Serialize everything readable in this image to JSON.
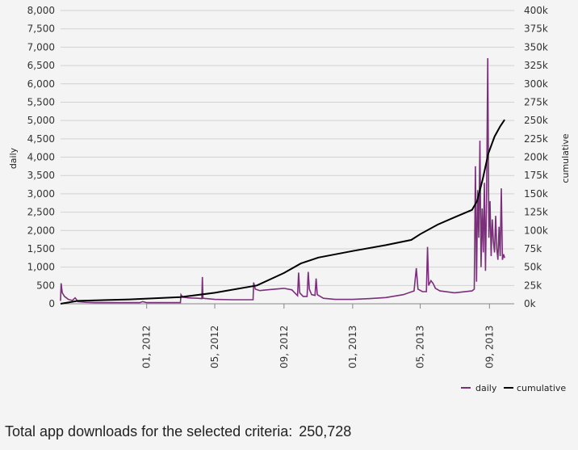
{
  "chart_data": {
    "type": "line",
    "x_axis": {
      "type": "date",
      "range": [
        "2011-08-01",
        "2013-10-15"
      ],
      "tick_labels": [
        "01, 2012",
        "05, 2012",
        "09, 2012",
        "01, 2013",
        "05, 2013",
        "09, 2013"
      ],
      "tick_dates": [
        "2012-01-01",
        "2012-05-01",
        "2012-09-01",
        "2013-01-01",
        "2013-05-01",
        "2013-09-01"
      ]
    },
    "y_left": {
      "label": "daily",
      "range": [
        0,
        8000
      ],
      "tick_labels": [
        "0",
        "500",
        "1,000",
        "1,500",
        "2,000",
        "2,500",
        "3,000",
        "3,500",
        "4,000",
        "4,500",
        "5,000",
        "5,500",
        "6,000",
        "6,500",
        "7,000",
        "7,500",
        "8,000"
      ]
    },
    "y_right": {
      "label": "cumulative",
      "range": [
        0,
        400000
      ],
      "tick_labels": [
        "0k",
        "25k",
        "50k",
        "75k",
        "100k",
        "125k",
        "150k",
        "175k",
        "200k",
        "225k",
        "250k",
        "275k",
        "300k",
        "325k",
        "350k",
        "375k",
        "400k"
      ]
    },
    "grid": "horizontal",
    "legend_position": "bottom-right",
    "series": [
      {
        "name": "daily",
        "axis": "left",
        "color": "#7b2f7b",
        "points": [
          [
            "2011-08-01",
            80
          ],
          [
            "2011-08-02",
            560
          ],
          [
            "2011-08-04",
            300
          ],
          [
            "2011-08-08",
            200
          ],
          [
            "2011-08-15",
            120
          ],
          [
            "2011-08-22",
            90
          ],
          [
            "2011-08-27",
            160
          ],
          [
            "2011-09-01",
            60
          ],
          [
            "2011-09-15",
            40
          ],
          [
            "2011-10-01",
            30
          ],
          [
            "2011-11-01",
            30
          ],
          [
            "2011-12-01",
            30
          ],
          [
            "2011-12-20",
            30
          ],
          [
            "2011-12-25",
            60
          ],
          [
            "2012-01-01",
            30
          ],
          [
            "2012-02-01",
            30
          ],
          [
            "2012-03-01",
            30
          ],
          [
            "2012-03-02",
            250
          ],
          [
            "2012-03-05",
            180
          ],
          [
            "2012-03-15",
            160
          ],
          [
            "2012-04-01",
            150
          ],
          [
            "2012-04-08",
            140
          ],
          [
            "2012-04-09",
            730
          ],
          [
            "2012-04-10",
            150
          ],
          [
            "2012-05-01",
            120
          ],
          [
            "2012-06-01",
            110
          ],
          [
            "2012-07-01",
            110
          ],
          [
            "2012-07-08",
            110
          ],
          [
            "2012-07-09",
            580
          ],
          [
            "2012-07-12",
            400
          ],
          [
            "2012-07-20",
            360
          ],
          [
            "2012-08-01",
            380
          ],
          [
            "2012-08-15",
            400
          ],
          [
            "2012-09-01",
            420
          ],
          [
            "2012-09-15",
            380
          ],
          [
            "2012-09-20",
            300
          ],
          [
            "2012-09-25",
            220
          ],
          [
            "2012-09-27",
            850
          ],
          [
            "2012-09-29",
            300
          ],
          [
            "2012-10-05",
            200
          ],
          [
            "2012-10-12",
            200
          ],
          [
            "2012-10-14",
            870
          ],
          [
            "2012-10-16",
            400
          ],
          [
            "2012-10-20",
            250
          ],
          [
            "2012-10-26",
            230
          ],
          [
            "2012-10-28",
            690
          ],
          [
            "2012-10-30",
            250
          ],
          [
            "2012-11-10",
            150
          ],
          [
            "2012-12-01",
            120
          ],
          [
            "2013-01-01",
            120
          ],
          [
            "2013-02-01",
            140
          ],
          [
            "2013-03-01",
            170
          ],
          [
            "2013-04-01",
            250
          ],
          [
            "2013-04-20",
            350
          ],
          [
            "2013-04-24",
            970
          ],
          [
            "2013-04-27",
            400
          ],
          [
            "2013-05-05",
            330
          ],
          [
            "2013-05-12",
            330
          ],
          [
            "2013-05-14",
            1550
          ],
          [
            "2013-05-16",
            500
          ],
          [
            "2013-05-20",
            630
          ],
          [
            "2013-05-24",
            550
          ],
          [
            "2013-05-28",
            420
          ],
          [
            "2013-06-05",
            350
          ],
          [
            "2013-07-01",
            300
          ],
          [
            "2013-08-01",
            350
          ],
          [
            "2013-08-05",
            400
          ],
          [
            "2013-08-07",
            3750
          ],
          [
            "2013-08-09",
            600
          ],
          [
            "2013-08-11",
            3100
          ],
          [
            "2013-08-13",
            1800
          ],
          [
            "2013-08-15",
            4450
          ],
          [
            "2013-08-17",
            1000
          ],
          [
            "2013-08-19",
            2600
          ],
          [
            "2013-08-21",
            1400
          ],
          [
            "2013-08-23",
            3300
          ],
          [
            "2013-08-25",
            900
          ],
          [
            "2013-08-27",
            3000
          ],
          [
            "2013-08-29",
            6700
          ],
          [
            "2013-08-31",
            1800
          ],
          [
            "2013-09-02",
            2800
          ],
          [
            "2013-09-04",
            1300
          ],
          [
            "2013-09-06",
            2300
          ],
          [
            "2013-09-08",
            1700
          ],
          [
            "2013-09-10",
            1400
          ],
          [
            "2013-09-12",
            2400
          ],
          [
            "2013-09-14",
            1500
          ],
          [
            "2013-09-16",
            1200
          ],
          [
            "2013-09-18",
            2100
          ],
          [
            "2013-09-20",
            1300
          ],
          [
            "2013-09-22",
            3150
          ],
          [
            "2013-09-24",
            1200
          ],
          [
            "2013-09-26",
            1350
          ],
          [
            "2013-09-28",
            1250
          ]
        ]
      },
      {
        "name": "cumulative",
        "axis": "right",
        "color": "#000000",
        "points": [
          [
            "2011-08-01",
            0
          ],
          [
            "2011-09-01",
            4000
          ],
          [
            "2011-12-01",
            6000
          ],
          [
            "2012-03-01",
            9000
          ],
          [
            "2012-05-01",
            15000
          ],
          [
            "2012-07-15",
            25000
          ],
          [
            "2012-09-01",
            42000
          ],
          [
            "2012-10-01",
            55000
          ],
          [
            "2012-11-01",
            63000
          ],
          [
            "2013-01-01",
            72000
          ],
          [
            "2013-03-01",
            80000
          ],
          [
            "2013-04-15",
            87000
          ],
          [
            "2013-05-01",
            95000
          ],
          [
            "2013-06-01",
            108000
          ],
          [
            "2013-07-01",
            118000
          ],
          [
            "2013-08-01",
            128000
          ],
          [
            "2013-08-10",
            140000
          ],
          [
            "2013-08-20",
            170000
          ],
          [
            "2013-08-30",
            205000
          ],
          [
            "2013-09-10",
            228000
          ],
          [
            "2013-09-20",
            242000
          ],
          [
            "2013-09-28",
            251000
          ]
        ]
      }
    ]
  },
  "summary": {
    "label": "Total app downloads for the selected criteria:",
    "value": "250,728"
  }
}
